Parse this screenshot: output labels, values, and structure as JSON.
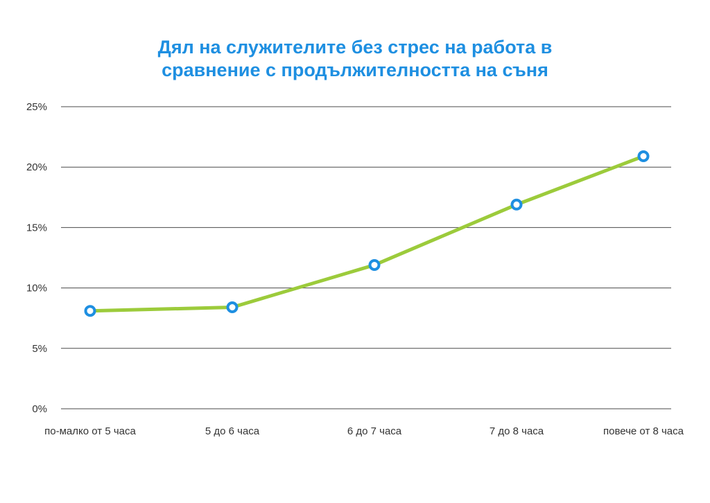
{
  "chart_data": {
    "type": "line",
    "title_lines": [
      "Дял на служителите без стрес на работа в",
      "сравнение с продължителността на съня"
    ],
    "categories": [
      "по-малко от 5 часа",
      "5 до 6 часа",
      "6 до 7 часа",
      "7 до 8 часа",
      "повече от 8 часа"
    ],
    "series": [
      {
        "values": [
          8.1,
          8.4,
          11.9,
          16.9,
          20.9
        ]
      }
    ],
    "y_ticks": [
      "0%",
      "5%",
      "10%",
      "15%",
      "20%",
      "25%"
    ],
    "ylim": [
      0,
      25
    ],
    "y_unit": "%",
    "grid": true,
    "colors": {
      "title": "#1e8fe1",
      "line": "#9ccb3b",
      "marker_stroke": "#1e8fe1",
      "marker_fill": "#ffffff",
      "grid": "#4a4a4a",
      "tick_text": "#333333"
    }
  }
}
